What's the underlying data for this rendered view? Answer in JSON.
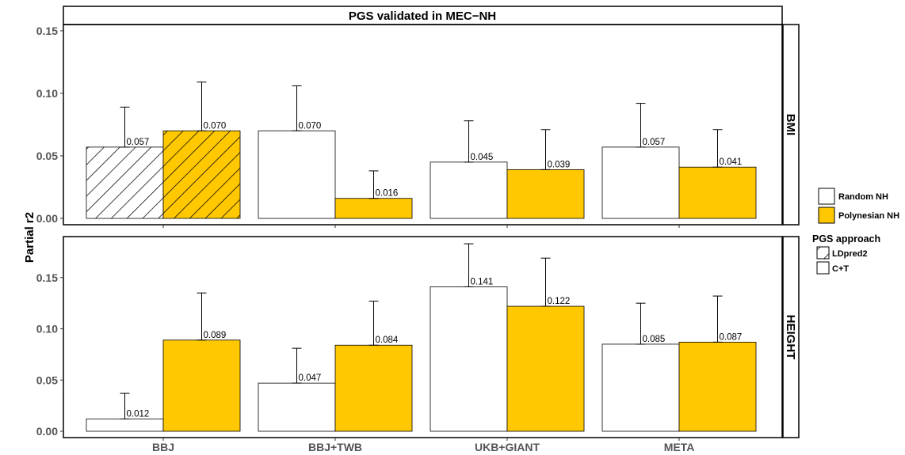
{
  "chart_data": {
    "type": "bar",
    "title": "PGS validated in MEC−NH",
    "ylabel": "Partial r2",
    "xlabel": "",
    "categories": [
      "BBJ",
      "BBJ+TWB",
      "UKB+GIANT",
      "META"
    ],
    "panels": [
      {
        "name": "BMI",
        "ylim": [
          0,
          0.155
        ],
        "yticks": [
          0.0,
          0.05,
          0.1,
          0.15
        ],
        "ytick_labels": [
          "0.00",
          "0.05",
          "0.10",
          "0.15"
        ],
        "series": [
          {
            "name": "Random NH",
            "values": [
              0.057,
              0.07,
              0.045,
              0.057
            ],
            "labels": [
              "0.057",
              "0.070",
              "0.045",
              "0.057"
            ],
            "upper": [
              0.089,
              0.106,
              0.078,
              0.092
            ],
            "approach": [
              "LDpred2",
              "C+T",
              "C+T",
              "C+T"
            ]
          },
          {
            "name": "Polynesian NH",
            "values": [
              0.07,
              0.016,
              0.039,
              0.041
            ],
            "labels": [
              "0.070",
              "0.016",
              "0.039",
              "0.041"
            ],
            "upper": [
              0.109,
              0.038,
              0.071,
              0.071
            ],
            "approach": [
              "LDpred2",
              "C+T",
              "C+T",
              "C+T"
            ]
          }
        ]
      },
      {
        "name": "HEIGHT",
        "ylim": [
          0,
          0.19
        ],
        "yticks": [
          0.0,
          0.05,
          0.1,
          0.15
        ],
        "ytick_labels": [
          "0.00",
          "0.05",
          "0.10",
          "0.15"
        ],
        "series": [
          {
            "name": "Random NH",
            "values": [
              0.012,
              0.047,
              0.141,
              0.085
            ],
            "labels": [
              "0.012",
              "0.047",
              "0.141",
              "0.085"
            ],
            "upper": [
              0.037,
              0.081,
              0.183,
              0.125
            ],
            "approach": [
              "C+T",
              "C+T",
              "C+T",
              "C+T"
            ]
          },
          {
            "name": "Polynesian NH",
            "values": [
              0.089,
              0.084,
              0.122,
              0.087
            ],
            "labels": [
              "0.089",
              "0.084",
              "0.122",
              "0.087"
            ],
            "upper": [
              0.135,
              0.127,
              0.169,
              0.132
            ],
            "approach": [
              "C+T",
              "C+T",
              "C+T",
              "C+T"
            ]
          }
        ]
      }
    ],
    "legend": {
      "position": "right",
      "fill_entries": [
        {
          "label": "Random NH",
          "color": "#ffffff"
        },
        {
          "label": "Polynesian NH",
          "color": "#ffc800"
        }
      ],
      "pattern_title": "PGS approach",
      "pattern_entries": [
        {
          "label": "LDpred2",
          "pattern": "hatched"
        },
        {
          "label": "C+T",
          "pattern": "none"
        }
      ]
    },
    "colors": {
      "Random NH": "#ffffff",
      "Polynesian NH": "#ffc800"
    },
    "grid": false
  }
}
